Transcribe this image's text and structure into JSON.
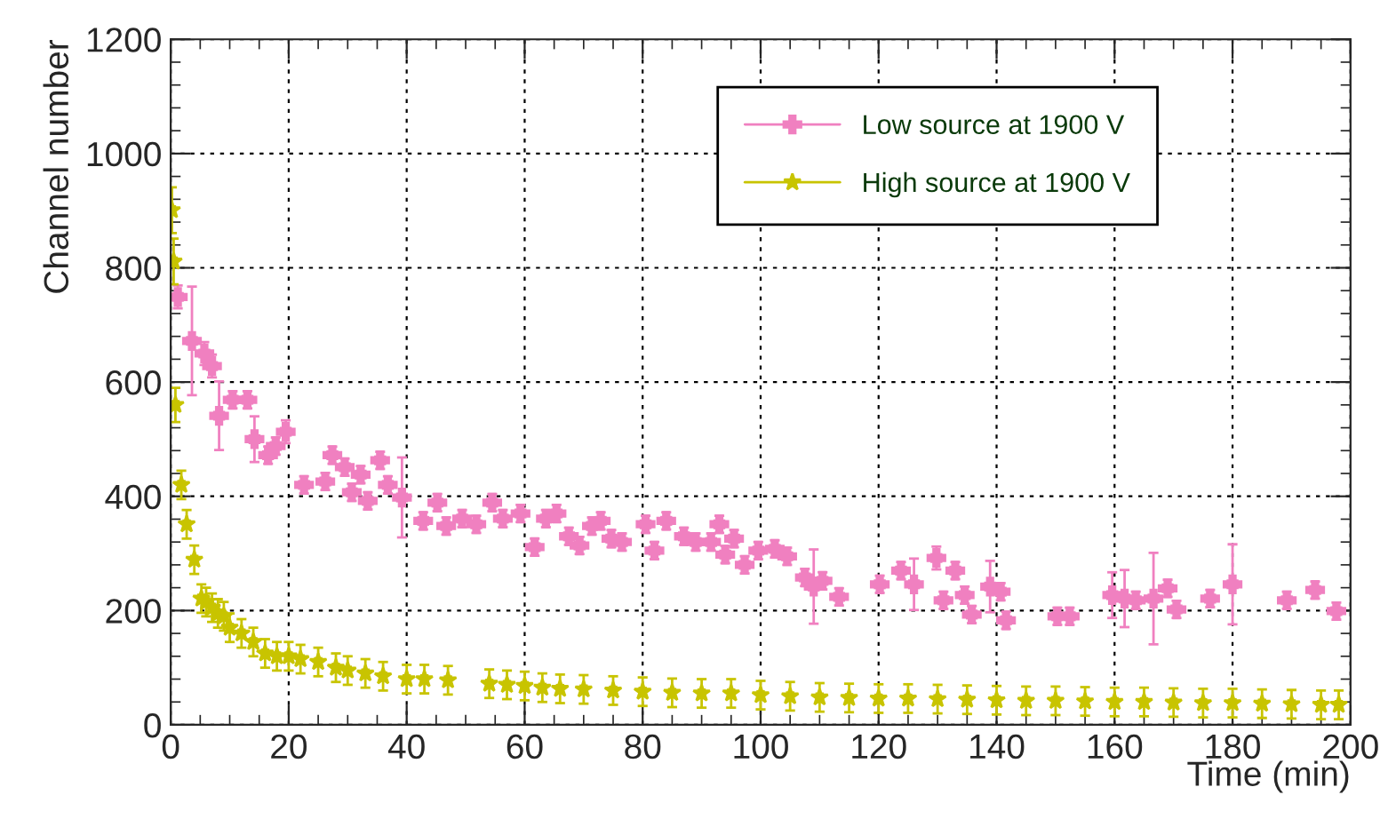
{
  "chart_data": {
    "type": "scatter",
    "xlabel": "Time (min)",
    "ylabel": "Channel number",
    "xlim": [
      0,
      200
    ],
    "xticks": [
      0,
      20,
      40,
      60,
      80,
      100,
      120,
      140,
      160,
      180,
      200
    ],
    "ylim": [
      0,
      1200
    ],
    "yticks": [
      0,
      200,
      400,
      600,
      800,
      1000,
      1200
    ],
    "grid": true,
    "legend": "top right",
    "line_style": "none",
    "series": [
      {
        "name": "Low source at 1900 V",
        "color": "#f080c0",
        "marker": "cross",
        "x": [
          1.2,
          3.6,
          5.7,
          7,
          8.2,
          10.5,
          13,
          14.2,
          16.5,
          17.8,
          19.5,
          22.6,
          26.2,
          27.4,
          29.5,
          30.7,
          32.2,
          33.4,
          35.5,
          36.8,
          39.2,
          42.8,
          45.2,
          46.7,
          49.4,
          51.8,
          54.5,
          56.3,
          59.3,
          61.7,
          63.6,
          65.4,
          67.5,
          69.3,
          71.4,
          72.9,
          74.7,
          76.5,
          80.5,
          82,
          84,
          87,
          89,
          91.6,
          93,
          94,
          95.5,
          97.3,
          99.6,
          102.4,
          104.5,
          107.5,
          109,
          110.5,
          113.3,
          120.2,
          123.8,
          126,
          129.8,
          131,
          133,
          134.6,
          135.8,
          138.9,
          140.7,
          141.6,
          150.3,
          152.4,
          159.6,
          161.7,
          163.6,
          166.6,
          169,
          170.5,
          176.2,
          180,
          189.2,
          194,
          197.6
        ],
        "values": [
          749,
          672,
          650,
          628,
          541,
          569,
          569,
          500,
          472,
          488,
          513,
          420,
          426,
          472,
          451,
          407,
          438,
          392,
          463,
          420,
          398,
          357,
          389,
          348,
          361,
          351,
          389,
          361,
          370,
          311,
          361,
          370,
          330,
          314,
          348,
          357,
          326,
          320,
          351,
          305,
          357,
          330,
          320,
          320,
          351,
          298,
          326,
          280,
          305,
          308,
          295,
          258,
          242,
          252,
          224,
          246,
          270,
          246,
          292,
          218,
          270,
          227,
          193,
          242,
          233,
          183,
          190,
          190,
          227,
          221,
          218,
          221,
          239,
          202,
          221,
          246,
          218,
          236,
          199
        ],
        "errors": [
          20,
          95,
          20,
          20,
          60,
          15,
          15,
          40,
          15,
          15,
          20,
          15,
          15,
          15,
          15,
          15,
          15,
          15,
          15,
          15,
          70,
          15,
          15,
          15,
          15,
          15,
          15,
          15,
          15,
          15,
          15,
          15,
          15,
          15,
          15,
          15,
          15,
          15,
          15,
          15,
          15,
          15,
          15,
          15,
          15,
          15,
          15,
          15,
          15,
          15,
          15,
          15,
          65,
          15,
          15,
          15,
          15,
          45,
          20,
          15,
          15,
          15,
          15,
          45,
          15,
          15,
          15,
          15,
          40,
          50,
          15,
          80,
          15,
          15,
          15,
          70,
          15,
          15,
          15
        ],
        "xerrors": [
          0.8,
          0.8,
          0.8,
          0.8,
          0.8,
          0.8,
          0.8,
          0.8,
          0.8,
          0.8,
          0.8,
          0.8,
          0.8,
          0.8,
          0.8,
          0.8,
          0.8,
          0.8,
          0.8,
          0.8,
          0.8,
          0.8,
          0.8,
          0.8,
          0.8,
          0.8,
          0.8,
          0.8,
          0.8,
          0.8,
          0.8,
          0.8,
          0.8,
          0.8,
          0.8,
          0.8,
          0.8,
          0.8,
          0.8,
          0.8,
          0.8,
          0.8,
          0.8,
          0.8,
          0.8,
          0.8,
          0.8,
          0.8,
          0.8,
          0.8,
          0.8,
          0.8,
          0.8,
          0.8,
          0.8,
          0.8,
          0.8,
          0.8,
          0.8,
          0.8,
          0.8,
          0.8,
          0.8,
          0.8,
          0.8,
          0.8,
          0.8,
          0.8,
          0.8,
          0.8,
          0.8,
          0.8,
          0.8,
          0.8,
          0.8,
          0.8,
          0.8,
          0.8,
          0.8
        ]
      },
      {
        "name": "High source at 1900 V",
        "color": "#c8c400",
        "marker": "star",
        "x": [
          0.2,
          0.5,
          0.8,
          1.8,
          2.7,
          4,
          5.2,
          6,
          7,
          8,
          9,
          10,
          12,
          14,
          16,
          18,
          20,
          22,
          25,
          28,
          30,
          33,
          36,
          40,
          43,
          47,
          54,
          57,
          60,
          63,
          66,
          70,
          75,
          80,
          85,
          90,
          95,
          100,
          105,
          110,
          115,
          120,
          125,
          130,
          135,
          140,
          145,
          150,
          155,
          160,
          165,
          170,
          175,
          180,
          185,
          190,
          195,
          198
        ],
        "values": [
          901,
          811,
          560,
          420,
          351,
          289,
          221,
          215,
          205,
          195,
          190,
          170,
          160,
          145,
          125,
          120,
          120,
          115,
          110,
          100,
          95,
          90,
          85,
          80,
          80,
          78,
          72,
          70,
          68,
          65,
          63,
          62,
          60,
          58,
          56,
          55,
          55,
          52,
          50,
          48,
          47,
          46,
          46,
          45,
          44,
          43,
          42,
          42,
          41,
          40,
          40,
          39,
          38,
          38,
          37,
          36,
          35,
          35
        ],
        "errors": [
          40,
          40,
          30,
          25,
          25,
          25,
          25,
          25,
          25,
          25,
          25,
          25,
          25,
          25,
          25,
          25,
          25,
          25,
          25,
          25,
          25,
          25,
          25,
          25,
          25,
          25,
          25,
          25,
          25,
          25,
          25,
          25,
          25,
          25,
          25,
          25,
          25,
          25,
          25,
          25,
          25,
          25,
          25,
          25,
          25,
          25,
          25,
          25,
          25,
          25,
          25,
          25,
          25,
          25,
          25,
          25,
          25,
          25
        ],
        "xerrors": [
          0.5,
          0.5,
          0.5,
          0.5,
          0.5,
          0.5,
          0.5,
          0.5,
          0.5,
          0.5,
          0.5,
          0.5,
          0.5,
          0.5,
          0.5,
          0.5,
          0.5,
          0.5,
          0.5,
          0.5,
          0.5,
          0.5,
          0.5,
          0.5,
          0.5,
          0.5,
          0.5,
          0.5,
          0.5,
          0.5,
          0.5,
          0.5,
          0.5,
          0.5,
          0.5,
          0.5,
          0.5,
          0.5,
          0.5,
          0.5,
          0.5,
          0.5,
          0.5,
          0.5,
          0.5,
          0.5,
          0.5,
          0.5,
          0.5,
          0.5,
          0.5,
          0.5,
          0.5,
          0.5,
          0.5,
          0.5,
          0.5,
          0.5
        ]
      }
    ]
  }
}
